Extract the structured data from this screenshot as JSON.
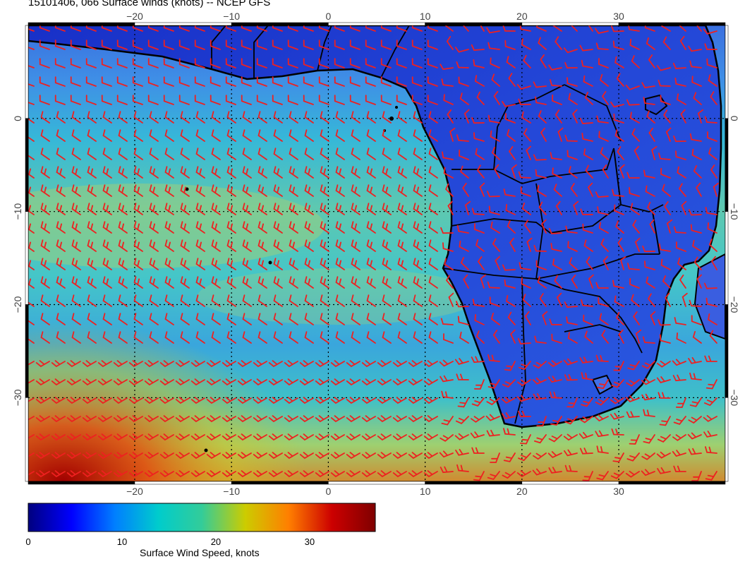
{
  "title": "15101406, 066 Surface winds (knots) -- NCEP GFS",
  "map": {
    "lon_range": [
      -31,
      41
    ],
    "lat_range": [
      -39,
      10
    ],
    "lon_ticks": [
      {
        "value": -20,
        "label": "−20"
      },
      {
        "value": -10,
        "label": "−10"
      },
      {
        "value": 0,
        "label": "0"
      },
      {
        "value": 10,
        "label": "10"
      },
      {
        "value": 20,
        "label": "20"
      },
      {
        "value": 30,
        "label": "30"
      }
    ],
    "lat_ticks": [
      {
        "value": 0,
        "label": "0"
      },
      {
        "value": -10,
        "label": "−10"
      },
      {
        "value": -20,
        "label": "−20"
      },
      {
        "value": -30,
        "label": "−30"
      }
    ],
    "barb_color": "#ee2020",
    "coastline_color": "#000000",
    "gridlines": "dotted"
  },
  "colorbar": {
    "label": "Surface Wind Speed, knots",
    "range": [
      0,
      37
    ],
    "ticks": [
      {
        "value": 0,
        "label": "0"
      },
      {
        "value": 10,
        "label": "10"
      },
      {
        "value": 20,
        "label": "20"
      },
      {
        "value": 30,
        "label": "30"
      }
    ],
    "colormap": [
      "#00007f",
      "#0000ff",
      "#007fff",
      "#00cccc",
      "#33cc99",
      "#cccc00",
      "#ff7f00",
      "#cc0000",
      "#7f0000"
    ]
  }
}
